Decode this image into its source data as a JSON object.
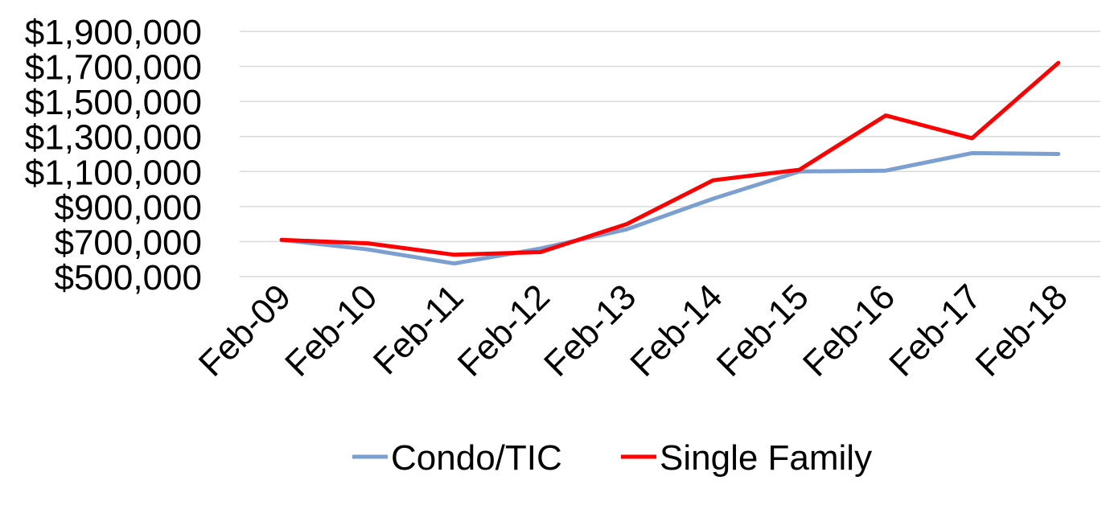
{
  "chart_data": {
    "type": "line",
    "categories": [
      "Feb-09",
      "Feb-10",
      "Feb-11",
      "Feb-12",
      "Feb-13",
      "Feb-14",
      "Feb-15",
      "Feb-16",
      "Feb-17",
      "Feb-18"
    ],
    "y_ticks": [
      500000,
      700000,
      900000,
      1100000,
      1300000,
      1500000,
      1700000,
      1900000
    ],
    "y_tick_labels": [
      "$500,000",
      "$700,000",
      "$900,000",
      "$1,100,000",
      "$1,300,000",
      "$1,500,000",
      "$1,700,000",
      "$1,900,000"
    ],
    "ylim": [
      500000,
      1900000
    ],
    "grid": true,
    "legend_position": "bottom",
    "series": [
      {
        "name": "Condo/TIC",
        "color": "#7a9fd0",
        "values": [
          710000,
          655000,
          575000,
          660000,
          770000,
          945000,
          1100000,
          1105000,
          1205000,
          1200000
        ]
      },
      {
        "name": "Single Family",
        "color": "#ff0000",
        "values": [
          710000,
          690000,
          625000,
          640000,
          800000,
          1050000,
          1110000,
          1420000,
          1290000,
          1720000
        ]
      }
    ]
  }
}
